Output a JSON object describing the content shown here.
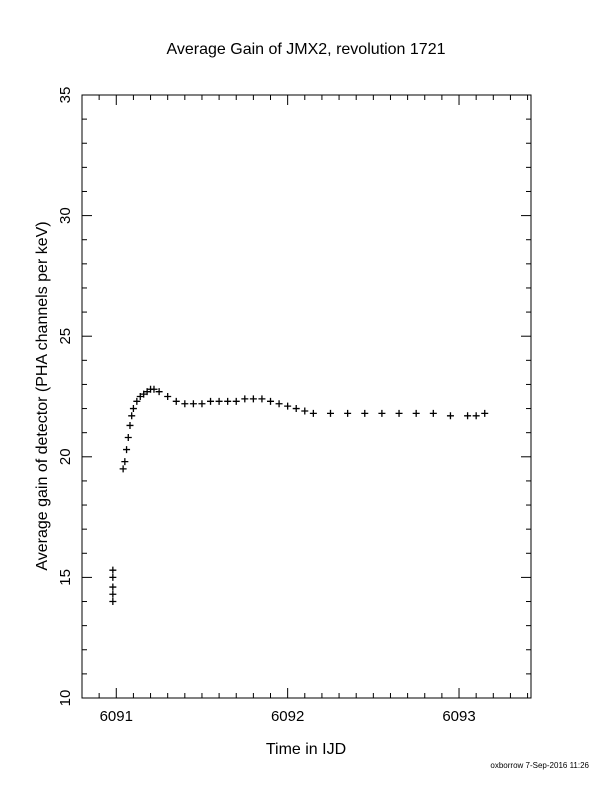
{
  "chart_data": {
    "type": "scatter",
    "title": "Average Gain of JMX2, revolution 1721",
    "xlabel": "Time in IJD",
    "ylabel": "Average gain of detector (PHA channels per keV)",
    "xlim": [
      6090.8,
      6093.42
    ],
    "ylim": [
      10,
      35
    ],
    "x_ticks": [
      6091,
      6092,
      6093
    ],
    "y_ticks": [
      10,
      15,
      20,
      25,
      30,
      35
    ],
    "marker": "plus",
    "grid": false,
    "legend": "none",
    "series": [
      {
        "x": [
          6090.98,
          6090.98,
          6090.98,
          6090.98,
          6090.98,
          6091.04,
          6091.05,
          6091.06,
          6091.07,
          6091.08,
          6091.09,
          6091.1,
          6091.12,
          6091.14,
          6091.16,
          6091.18,
          6091.2,
          6091.22,
          6091.25,
          6091.3,
          6091.35,
          6091.4,
          6091.45,
          6091.5,
          6091.55,
          6091.6,
          6091.65,
          6091.7,
          6091.75,
          6091.8,
          6091.85,
          6091.9,
          6091.95,
          6092.0,
          6092.05,
          6092.1,
          6092.15,
          6092.25,
          6092.35,
          6092.45,
          6092.55,
          6092.65,
          6092.75,
          6092.85,
          6092.95,
          6093.05,
          6093.1,
          6093.15
        ],
        "y": [
          14.0,
          14.3,
          14.6,
          15.0,
          15.3,
          19.5,
          19.8,
          20.3,
          20.8,
          21.3,
          21.7,
          22.0,
          22.3,
          22.5,
          22.6,
          22.7,
          22.8,
          22.8,
          22.7,
          22.5,
          22.3,
          22.2,
          22.2,
          22.2,
          22.3,
          22.3,
          22.3,
          22.3,
          22.4,
          22.4,
          22.4,
          22.3,
          22.2,
          22.1,
          22.0,
          21.9,
          21.8,
          21.8,
          21.8,
          21.8,
          21.8,
          21.8,
          21.8,
          21.8,
          21.7,
          21.7,
          21.7,
          21.8
        ]
      }
    ]
  },
  "footer": {
    "credit": "oxborrow  7-Sep-2016 11:26"
  }
}
